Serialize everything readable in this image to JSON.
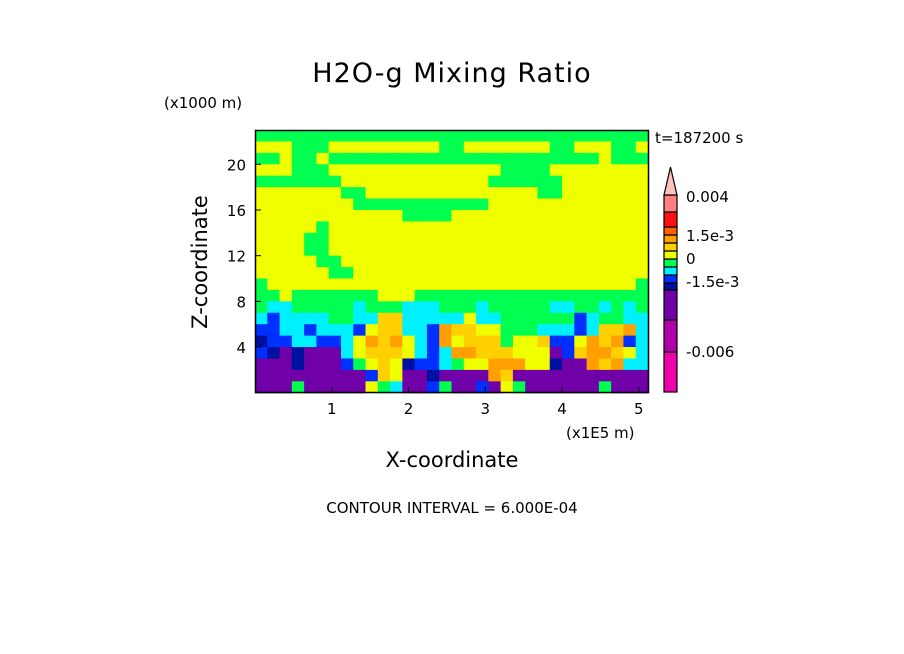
{
  "chart_data": {
    "type": "heatmap",
    "title": "H2O-g Mixing Ratio",
    "xlabel": "X-coordinate",
    "ylabel": "Z-coordinate",
    "x_unit": "(x1E5 m)",
    "y_unit": "(x1000 m)",
    "time_label": "t=187200 s",
    "footer": "CONTOUR INTERVAL = 6.000E-04",
    "xlim": [
      0,
      5.12
    ],
    "ylim": [
      0,
      23
    ],
    "x_ticks": [
      "1",
      "2",
      "3",
      "4",
      "5"
    ],
    "x_tick_values": [
      1,
      2,
      3,
      4,
      5
    ],
    "y_ticks": [
      "4",
      "8",
      "12",
      "16",
      "20"
    ],
    "y_tick_values": [
      4,
      8,
      12,
      16,
      20
    ],
    "colorbar": {
      "labels": [
        "0.004",
        "1.5e-3",
        "0",
        "-1.5e-3",
        "-0.006"
      ],
      "label_values": [
        0.004,
        0.0015,
        0,
        -0.0015,
        -0.006
      ],
      "arrow_color": "#ffc0c0",
      "class_values": [
        -0.008,
        -0.005,
        -0.003,
        -0.0021,
        -0.0015,
        -0.0009,
        -0.0003,
        0.0003,
        0.0009,
        0.0015,
        0.0021,
        0.003,
        0.0045
      ],
      "colors": [
        "#ee00aa",
        "#b000a8",
        "#7000a8",
        "#0010a0",
        "#0030ff",
        "#00f0ff",
        "#00ff50",
        "#f0ff00",
        "#ffd000",
        "#ffa000",
        "#ff6000",
        "#ff1010",
        "#ff8080"
      ]
    },
    "grid_note": "rows from z=22.5 (top) to z=0.5 (bottom), 32 columns across x; each digit/letter is a colorbar class index (0=lowest)",
    "grid": [
      "66666666666666666666666666666666",
      "77766677777777766777777766777667",
      "66766766666666666666666666667666",
      "77766677777777777777666677777777",
      "66666667777777777776666667777777",
      "77777776677777777777777667777777",
      "77777777666666666667777777777777",
      "77777777777766667777777777777777",
      "77777677777777777777777777777777",
      "77776677777777777777777777777777",
      "77776677777777777777777777777777",
      "77777667777777777777777777777777",
      "77777766777777777777777777777777",
      "67777777777777777777777777777776",
      "66766666667776666666666666666666",
      "65566666566655566656666655665656",
      "54555566558855555755666666456655",
      "44554555478855498877666555458895",
      "34455445798975497888677844798945",
      "43232225788875459988877724899875",
      "22232224678734456779997732298955",
      "22222222248722322229822222222222",
      "22262222276522462242762222226222"
    ]
  }
}
